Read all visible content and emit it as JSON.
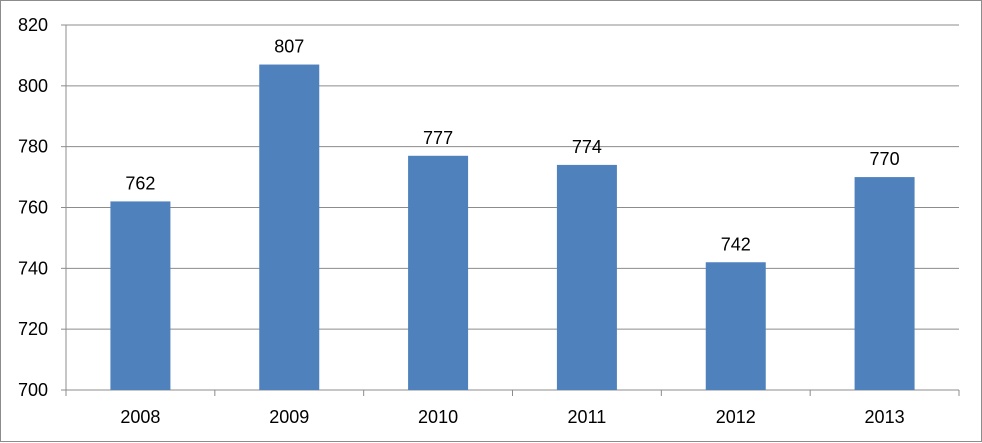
{
  "chart_data": {
    "type": "bar",
    "title": "",
    "xlabel": "",
    "ylabel": "",
    "categories": [
      "2008",
      "2009",
      "2010",
      "2011",
      "2012",
      "2013"
    ],
    "values": [
      762,
      807,
      777,
      774,
      742,
      770
    ],
    "data_labels": [
      "762",
      "807",
      "777",
      "774",
      "742",
      "770"
    ],
    "ylim": [
      700,
      820
    ],
    "yticks": [
      700,
      720,
      740,
      760,
      780,
      800,
      820
    ],
    "ytick_labels": [
      "700",
      "720",
      "740",
      "760",
      "780",
      "800",
      "820"
    ],
    "grid": true,
    "legend": "none",
    "bar_color": "#4f81bd",
    "grid_color": "#8c8c8c"
  }
}
